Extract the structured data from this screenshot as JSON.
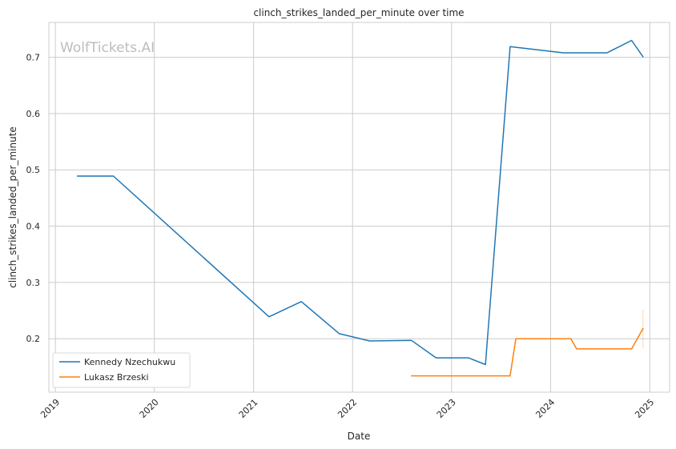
{
  "chart_data": {
    "type": "line",
    "title": "clinch_strikes_landed_per_minute over time",
    "xlabel": "Date",
    "ylabel": "clinch_strikes_landed_per_minute",
    "watermark": "WolfTickets.AI",
    "x_type": "date",
    "xlim": [
      "2018-12-08",
      "2025-03-15"
    ],
    "ylim": [
      0.105,
      0.762
    ],
    "x_ticks": [
      "2019",
      "2020",
      "2021",
      "2022",
      "2023",
      "2024",
      "2025"
    ],
    "y_ticks": [
      "0.2",
      "0.3",
      "0.4",
      "0.5",
      "0.6",
      "0.7"
    ],
    "grid": true,
    "legend_position": "lower-left",
    "series": [
      {
        "name": "Kennedy Nzechukwu",
        "color": "#1f77b4",
        "points": [
          {
            "x": "2019-03-23",
            "y": 0.489
          },
          {
            "x": "2019-08-03",
            "y": 0.489
          },
          {
            "x": "2021-02-27",
            "y": 0.239
          },
          {
            "x": "2021-06-26",
            "y": 0.266
          },
          {
            "x": "2021-11-13",
            "y": 0.209
          },
          {
            "x": "2022-03-05",
            "y": 0.196
          },
          {
            "x": "2022-08-06",
            "y": 0.197
          },
          {
            "x": "2022-11-05",
            "y": 0.166
          },
          {
            "x": "2023-03-04",
            "y": 0.166
          },
          {
            "x": "2023-05-06",
            "y": 0.154
          },
          {
            "x": "2023-08-05",
            "y": 0.719
          },
          {
            "x": "2024-02-17",
            "y": 0.708
          },
          {
            "x": "2024-07-27",
            "y": 0.708
          },
          {
            "x": "2024-10-26",
            "y": 0.73
          },
          {
            "x": "2024-12-07",
            "y": 0.701
          }
        ]
      },
      {
        "name": "Lukasz Brzeski",
        "color": "#ff7f0e",
        "points": [
          {
            "x": "2022-08-06",
            "y": 0.134
          },
          {
            "x": "2023-08-05",
            "y": 0.134
          },
          {
            "x": "2023-08-26",
            "y": 0.2
          },
          {
            "x": "2024-03-16",
            "y": 0.2
          },
          {
            "x": "2024-04-06",
            "y": 0.182
          },
          {
            "x": "2024-10-26",
            "y": 0.182
          },
          {
            "x": "2024-12-07",
            "y": 0.218
          }
        ]
      }
    ]
  }
}
